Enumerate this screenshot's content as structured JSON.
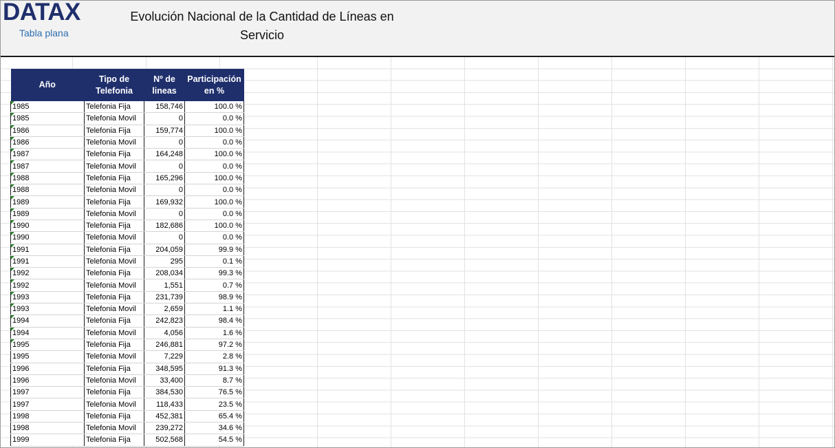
{
  "header": {
    "logo": "DATAX",
    "logo_subtitle": "Tabla plana",
    "title": "Evolución Nacional de la Cantidad de Líneas en Servicio"
  },
  "colors": {
    "header_fill": "#1f2f6c",
    "header_text": "#ffffff",
    "logo": "#1f2f6c",
    "subtitle": "#2e6fb0",
    "flag": "#2d8a2d"
  },
  "table": {
    "columns": [
      "Año",
      "Tipo de Telefonia",
      "Nº de lineas",
      "Participación en %"
    ],
    "rows": [
      {
        "year": "1985",
        "type": "Telefonia Fija",
        "lines": "158,746",
        "share": "100.0 %",
        "flag": true
      },
      {
        "year": "1985",
        "type": "Telefonia Movil",
        "lines": "0",
        "share": "0.0 %",
        "flag": true
      },
      {
        "year": "1986",
        "type": "Telefonia Fija",
        "lines": "159,774",
        "share": "100.0 %",
        "flag": true
      },
      {
        "year": "1986",
        "type": "Telefonia Movil",
        "lines": "0",
        "share": "0.0 %",
        "flag": true
      },
      {
        "year": "1987",
        "type": "Telefonia Fija",
        "lines": "164,248",
        "share": "100.0 %",
        "flag": true
      },
      {
        "year": "1987",
        "type": "Telefonia Movil",
        "lines": "0",
        "share": "0.0 %",
        "flag": true
      },
      {
        "year": "1988",
        "type": "Telefonia Fija",
        "lines": "165,296",
        "share": "100.0 %",
        "flag": true
      },
      {
        "year": "1988",
        "type": "Telefonia Movil",
        "lines": "0",
        "share": "0.0 %",
        "flag": true
      },
      {
        "year": "1989",
        "type": "Telefonia Fija",
        "lines": "169,932",
        "share": "100.0 %",
        "flag": true
      },
      {
        "year": "1989",
        "type": "Telefonia Movil",
        "lines": "0",
        "share": "0.0 %",
        "flag": true
      },
      {
        "year": "1990",
        "type": "Telefonia Fija",
        "lines": "182,686",
        "share": "100.0 %",
        "flag": true
      },
      {
        "year": "1990",
        "type": "Telefonia Movil",
        "lines": "0",
        "share": "0.0 %",
        "flag": true
      },
      {
        "year": "1991",
        "type": "Telefonia Fija",
        "lines": "204,059",
        "share": "99.9 %",
        "flag": true
      },
      {
        "year": "1991",
        "type": "Telefonia Movil",
        "lines": "295",
        "share": "0.1 %",
        "flag": true
      },
      {
        "year": "1992",
        "type": "Telefonia Fija",
        "lines": "208,034",
        "share": "99.3 %",
        "flag": true
      },
      {
        "year": "1992",
        "type": "Telefonia Movil",
        "lines": "1,551",
        "share": "0.7 %",
        "flag": true
      },
      {
        "year": "1993",
        "type": "Telefonia Fija",
        "lines": "231,739",
        "share": "98.9 %",
        "flag": true
      },
      {
        "year": "1993",
        "type": "Telefonia Movil",
        "lines": "2,659",
        "share": "1.1 %",
        "flag": true
      },
      {
        "year": "1994",
        "type": "Telefonia Fija",
        "lines": "242,823",
        "share": "98.4 %",
        "flag": true
      },
      {
        "year": "1994",
        "type": "Telefonia Movil",
        "lines": "4,056",
        "share": "1.6 %",
        "flag": true
      },
      {
        "year": "1995",
        "type": "Telefonia Fija",
        "lines": "246,881",
        "share": "97.2 %",
        "flag": true
      },
      {
        "year": "1995",
        "type": "Telefonia Movil",
        "lines": "7,229",
        "share": "2.8 %",
        "flag": false
      },
      {
        "year": "1996",
        "type": "Telefonia Fija",
        "lines": "348,595",
        "share": "91.3 %",
        "flag": false
      },
      {
        "year": "1996",
        "type": "Telefonia Movil",
        "lines": "33,400",
        "share": "8.7 %",
        "flag": false
      },
      {
        "year": "1997",
        "type": "Telefonia Fija",
        "lines": "384,530",
        "share": "76.5 %",
        "flag": false
      },
      {
        "year": "1997",
        "type": "Telefonia Movil",
        "lines": "118,433",
        "share": "23.5 %",
        "flag": false
      },
      {
        "year": "1998",
        "type": "Telefonia Fija",
        "lines": "452,381",
        "share": "65.4 %",
        "flag": false
      },
      {
        "year": "1998",
        "type": "Telefonia Movil",
        "lines": "239,272",
        "share": "34.6 %",
        "flag": false
      },
      {
        "year": "1999",
        "type": "Telefonia Fija",
        "lines": "502,568",
        "share": "54.5 %",
        "flag": false
      }
    ]
  }
}
